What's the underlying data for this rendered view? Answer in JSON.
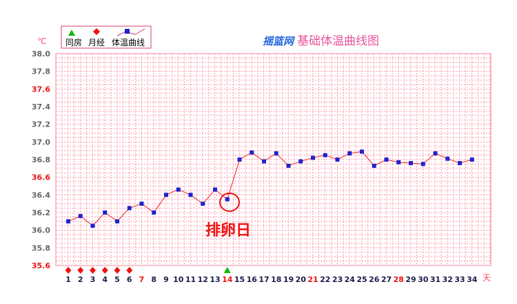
{
  "chart_data": {
    "type": "line",
    "title": "基础体温曲线图",
    "brand": "摇篮网",
    "ylabel": "℃",
    "xlabel": "天",
    "ylim": [
      35.6,
      38.0
    ],
    "yticks": [
      "38.0",
      "37.8",
      "37.6",
      "37.4",
      "37.2",
      "37.0",
      "36.8",
      "36.6",
      "36.4",
      "36.2",
      "36.0",
      "35.8",
      "35.6"
    ],
    "red_yticks": [
      "37.6",
      "36.6",
      "35.6"
    ],
    "x": [
      1,
      2,
      3,
      4,
      5,
      6,
      7,
      8,
      9,
      10,
      11,
      12,
      13,
      14,
      15,
      16,
      17,
      18,
      19,
      20,
      21,
      22,
      23,
      24,
      25,
      26,
      27,
      28,
      29,
      30,
      31,
      32,
      33,
      34
    ],
    "red_xticks": [
      7,
      14,
      21,
      28
    ],
    "series": [
      {
        "name": "体温曲线",
        "values": [
          36.1,
          36.16,
          36.05,
          36.2,
          36.1,
          36.25,
          36.3,
          36.2,
          36.4,
          36.46,
          36.4,
          36.3,
          36.46,
          36.35,
          36.8,
          36.88,
          36.78,
          36.87,
          36.73,
          36.78,
          36.82,
          36.85,
          36.8,
          36.87,
          36.89,
          36.73,
          36.8,
          36.77,
          36.76,
          36.75,
          36.87,
          36.81,
          36.76,
          36.8
        ]
      }
    ],
    "menstruation_days": [
      1,
      2,
      3,
      4,
      5,
      6
    ],
    "intercourse_days": [
      14
    ],
    "annotation": {
      "text": "排卵日",
      "day": 14
    },
    "legend": {
      "position": "top-left",
      "items": [
        "同房",
        "月经",
        "体温曲线"
      ]
    },
    "grid": true
  },
  "colors": {
    "grid": "#ff8099",
    "line": "#ee2222",
    "marker": "#2222cc",
    "red_tick": "#ee1111",
    "ytick": "#666666",
    "intercourse": "#11bb11",
    "menstruation": "#ee1111",
    "title": "#e7559a",
    "brand": "#2266dd"
  }
}
